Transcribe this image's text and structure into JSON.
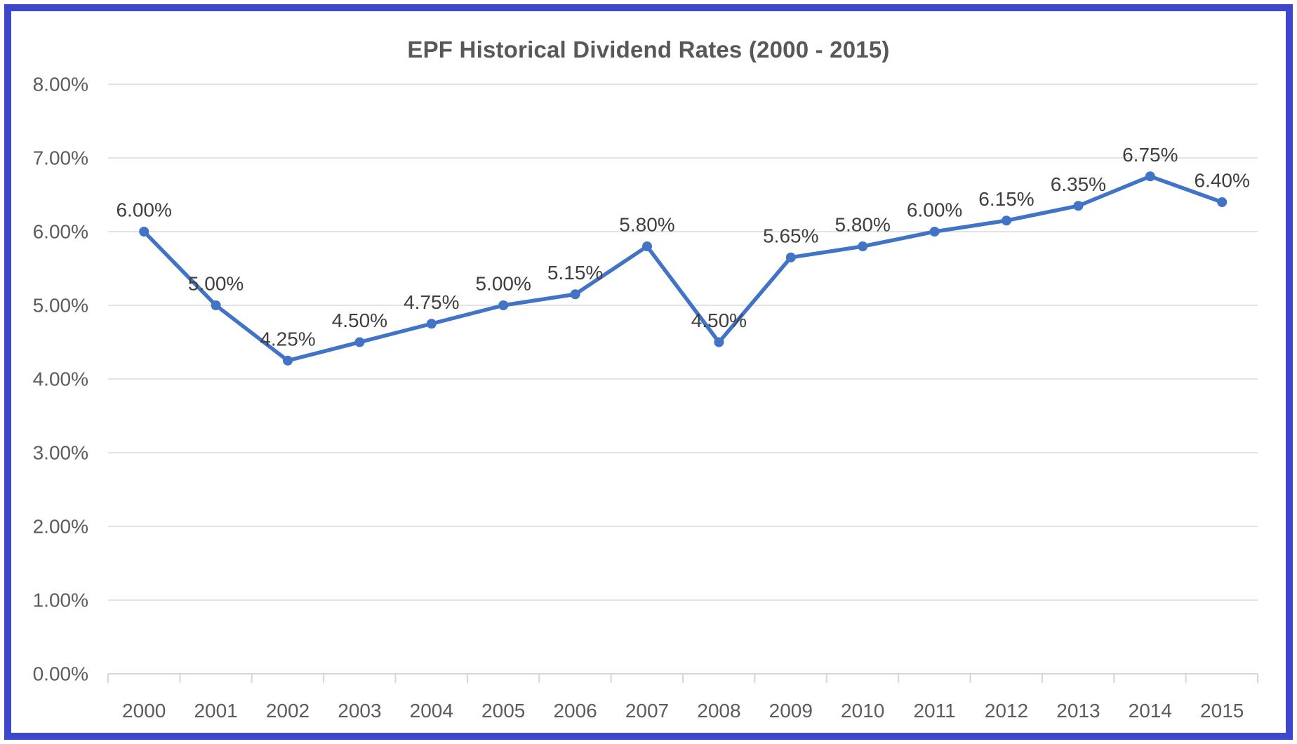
{
  "frame": {
    "border_color": "#3d47cb",
    "background": "#ffffff"
  },
  "chart_data": {
    "type": "line",
    "title": "EPF Historical Dividend Rates (2000 - 2015)",
    "categories": [
      "2000",
      "2001",
      "2002",
      "2003",
      "2004",
      "2005",
      "2006",
      "2007",
      "2008",
      "2009",
      "2010",
      "2011",
      "2012",
      "2013",
      "2014",
      "2015"
    ],
    "values": [
      6.0,
      5.0,
      4.25,
      4.5,
      4.75,
      5.0,
      5.15,
      5.8,
      4.5,
      5.65,
      5.8,
      6.0,
      6.15,
      6.35,
      6.75,
      6.4
    ],
    "point_labels": [
      "6.00%",
      "5.00%",
      "4.25%",
      "4.50%",
      "4.75%",
      "5.00%",
      "5.15%",
      "5.80%",
      "4.50%",
      "5.65%",
      "5.80%",
      "6.00%",
      "6.15%",
      "6.35%",
      "6.75%",
      "6.40%"
    ],
    "y_ticks": [
      {
        "value": 0,
        "label": "0.00%"
      },
      {
        "value": 1,
        "label": "1.00%"
      },
      {
        "value": 2,
        "label": "2.00%"
      },
      {
        "value": 3,
        "label": "3.00%"
      },
      {
        "value": 4,
        "label": "4.00%"
      },
      {
        "value": 5,
        "label": "5.00%"
      },
      {
        "value": 6,
        "label": "6.00%"
      },
      {
        "value": 7,
        "label": "7.00%"
      },
      {
        "value": 8,
        "label": "8.00%"
      }
    ],
    "xlabel": "",
    "ylabel": "",
    "ylim": [
      0,
      8
    ],
    "grid": true,
    "legend": "none",
    "colors": {
      "series": "#4173c6",
      "gridline": "#e3e3e3",
      "axis_line": "#d6d6d6",
      "axis_label": "#5c5c5c",
      "data_label": "#3f3f3f",
      "title": "#58585a"
    }
  }
}
